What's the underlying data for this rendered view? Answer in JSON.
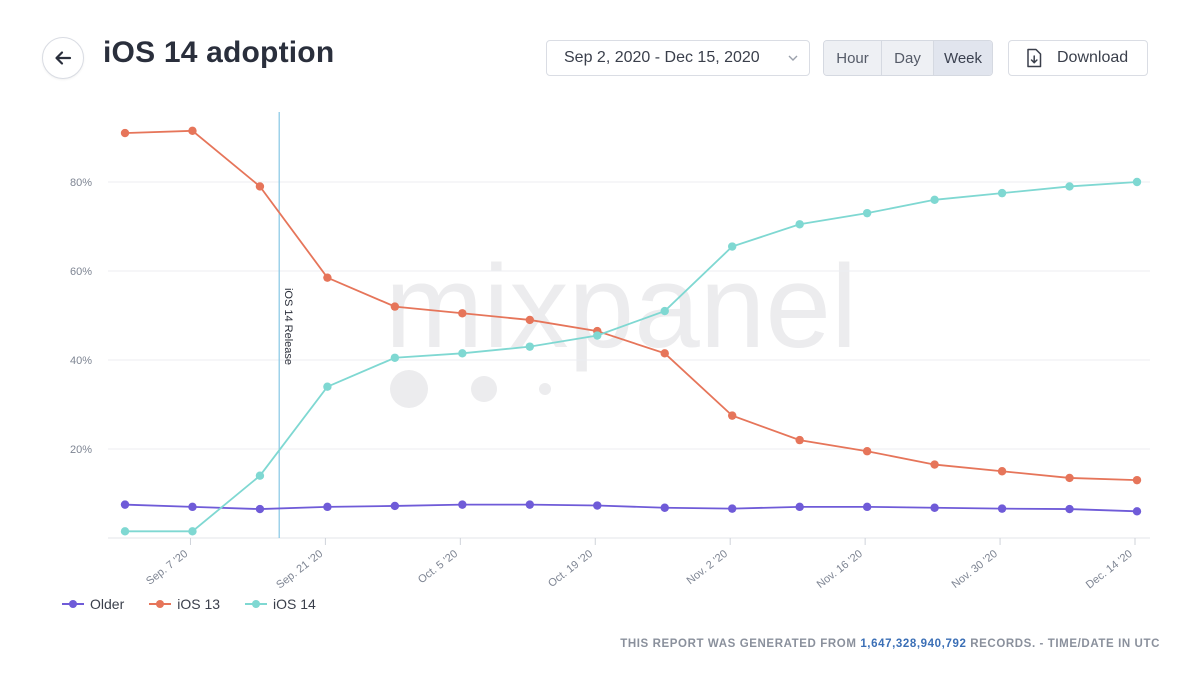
{
  "header": {
    "title": "iOS 14 adoption",
    "date_range": "Sep 2, 2020 - Dec 15, 2020",
    "granularity": [
      {
        "label": "Hour",
        "active": false
      },
      {
        "label": "Day",
        "active": false
      },
      {
        "label": "Week",
        "active": true
      }
    ],
    "download_label": "Download"
  },
  "footer": {
    "prefix": "THIS REPORT WAS GENERATED FROM ",
    "records": "1,647,328,940,792",
    "suffix": " RECORDS. - TIME/DATE IN UTC"
  },
  "watermark": "mixpanel",
  "chart_data": {
    "type": "line",
    "title": "",
    "xlabel": "",
    "ylabel": "",
    "ylim": [
      0,
      95
    ],
    "yticks": [
      20,
      40,
      60,
      80
    ],
    "ytick_labels": [
      "20%",
      "40%",
      "60%",
      "80%"
    ],
    "grid": true,
    "legend_position": "bottom-left",
    "x_tick_labels": [
      "Sep. 7 '20",
      "Sep. 21 '20",
      "Oct. 5 '20",
      "Oct. 19 '20",
      "Nov. 2 '20",
      "Nov. 16 '20",
      "Nov. 30 '20",
      "Dec. 14 '20"
    ],
    "x": [
      "Aug 31",
      "Sep 7",
      "Sep 14",
      "Sep 21",
      "Sep 28",
      "Oct 5",
      "Oct 12",
      "Oct 19",
      "Oct 26",
      "Nov 2",
      "Nov 9",
      "Nov 16",
      "Nov 23",
      "Nov 30",
      "Dec 7",
      "Dec 14"
    ],
    "series": [
      {
        "name": "Older",
        "color": "#6f5bd8",
        "values": [
          7.5,
          7,
          6.5,
          7,
          7.2,
          7.5,
          7.5,
          7.3,
          6.8,
          6.6,
          7,
          7,
          6.8,
          6.6,
          6.5,
          6
        ]
      },
      {
        "name": "iOS 13",
        "color": "#e6755a",
        "values": [
          91,
          91.5,
          79,
          58.5,
          52,
          50.5,
          49,
          46.5,
          41.5,
          27.5,
          22,
          19.5,
          16.5,
          15,
          13.5,
          13
        ]
      },
      {
        "name": "iOS 14",
        "color": "#7fd8d2",
        "values": [
          1.5,
          1.5,
          14,
          34,
          40.5,
          41.5,
          43,
          45.5,
          51,
          65.5,
          70.5,
          73,
          76,
          77.5,
          79,
          80
        ]
      }
    ],
    "annotations": [
      {
        "label": "iOS 14 Release",
        "x": "Sep 16"
      }
    ]
  }
}
